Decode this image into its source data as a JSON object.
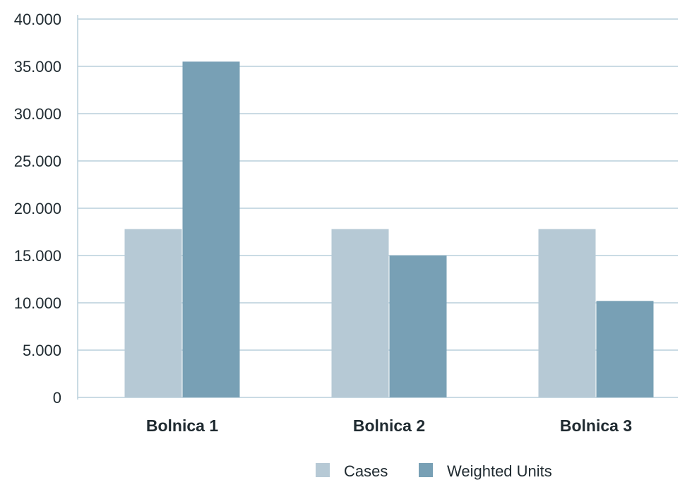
{
  "chart_data": {
    "type": "bar",
    "title": "",
    "xlabel": "",
    "ylabel": "",
    "categories": [
      "Bolnica 1",
      "Bolnica 2",
      "Bolnica 3"
    ],
    "series": [
      {
        "name": "Cases",
        "values": [
          17800,
          17800,
          17800
        ],
        "color": "#b6c9d5"
      },
      {
        "name": "Weighted Units",
        "values": [
          35500,
          15000,
          10200
        ],
        "color": "#78a0b5"
      }
    ],
    "ylim": [
      0,
      40000
    ],
    "yticks": [
      0,
      5000,
      10000,
      15000,
      20000,
      25000,
      30000,
      35000,
      40000
    ],
    "ytick_labels": [
      "0",
      "5.000",
      "10.000",
      "15.000",
      "20.000",
      "25.000",
      "30.000",
      "35.000",
      "40.000"
    ],
    "grid": true,
    "grid_color": "#b9cfdc",
    "legend_position": "bottom-right"
  }
}
